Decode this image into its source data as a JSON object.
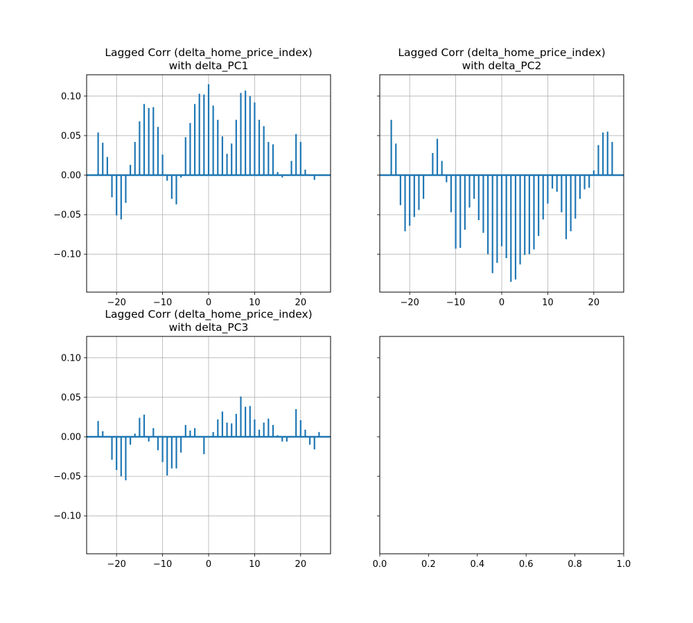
{
  "style": {
    "bar_color": "#1f77b4",
    "grid_color": "#b0b0b0",
    "background": "#ffffff"
  },
  "chart_data": [
    {
      "id": "pc1",
      "type": "bar",
      "title_line1": "Lagged Corr (delta_home_price_index)",
      "title_line2": "with delta_PC1",
      "xlabel": "",
      "ylabel": "",
      "xlim": [
        -26.5,
        26.5
      ],
      "ylim": [
        -0.148,
        0.127
      ],
      "xticks": [
        -20,
        -10,
        0,
        10,
        20
      ],
      "yticks": [
        -0.1,
        -0.05,
        0.0,
        0.05,
        0.1
      ],
      "xtick_labels": [
        "−20",
        "−10",
        "0",
        "10",
        "20"
      ],
      "ytick_labels": [
        "−0.10",
        "−0.05",
        "0.00",
        "0.05",
        "0.10"
      ],
      "show_xtick_labels": true,
      "show_ytick_labels": true,
      "grid": true,
      "baseline": 0,
      "x": [
        -24,
        -23,
        -22,
        -21,
        -20,
        -19,
        -18,
        -17,
        -16,
        -15,
        -14,
        -13,
        -12,
        -11,
        -10,
        -9,
        -8,
        -7,
        -6,
        -5,
        -4,
        -3,
        -2,
        -1,
        0,
        1,
        2,
        3,
        4,
        5,
        6,
        7,
        8,
        9,
        10,
        11,
        12,
        13,
        14,
        15,
        16,
        17,
        18,
        19,
        20,
        21,
        22,
        23,
        24
      ],
      "values": [
        0.054,
        0.041,
        0.023,
        -0.028,
        -0.051,
        -0.056,
        -0.035,
        0.013,
        0.042,
        0.068,
        0.09,
        0.085,
        0.086,
        0.061,
        0.026,
        -0.007,
        -0.03,
        -0.037,
        -0.003,
        0.048,
        0.066,
        0.09,
        0.103,
        0.102,
        0.115,
        0.088,
        0.07,
        0.049,
        0.027,
        0.04,
        0.07,
        0.104,
        0.107,
        0.1,
        0.092,
        0.07,
        0.062,
        0.042,
        0.039,
        0.004,
        -0.003,
        0.001,
        0.018,
        0.052,
        0.042,
        0.007,
        0.001,
        -0.006,
        0.001
      ]
    },
    {
      "id": "pc2",
      "type": "bar",
      "title_line1": "Lagged Corr (delta_home_price_index)",
      "title_line2": "with delta_PC2",
      "xlabel": "",
      "ylabel": "",
      "xlim": [
        -26.5,
        26.5
      ],
      "ylim": [
        -0.148,
        0.127
      ],
      "xticks": [
        -20,
        -10,
        0,
        10,
        20
      ],
      "yticks": [
        -0.1,
        -0.05,
        0.0,
        0.05,
        0.1
      ],
      "xtick_labels": [
        "−20",
        "−10",
        "0",
        "10",
        "20"
      ],
      "ytick_labels": [
        "−0.10",
        "−0.05",
        "0.00",
        "0.05",
        "0.10"
      ],
      "show_xtick_labels": true,
      "show_ytick_labels": false,
      "grid": true,
      "baseline": 0,
      "x": [
        -24,
        -23,
        -22,
        -21,
        -20,
        -19,
        -18,
        -17,
        -16,
        -15,
        -14,
        -13,
        -12,
        -11,
        -10,
        -9,
        -8,
        -7,
        -6,
        -5,
        -4,
        -3,
        -2,
        -1,
        0,
        1,
        2,
        3,
        4,
        5,
        6,
        7,
        8,
        9,
        10,
        11,
        12,
        13,
        14,
        15,
        16,
        17,
        18,
        19,
        20,
        21,
        22,
        23,
        24
      ],
      "values": [
        0.07,
        0.04,
        -0.038,
        -0.071,
        -0.064,
        -0.053,
        -0.044,
        -0.03,
        0.0,
        0.028,
        0.046,
        0.018,
        -0.009,
        -0.047,
        -0.093,
        -0.092,
        -0.069,
        -0.041,
        -0.03,
        -0.057,
        -0.073,
        -0.1,
        -0.124,
        -0.111,
        -0.09,
        -0.105,
        -0.135,
        -0.132,
        -0.113,
        -0.101,
        -0.1,
        -0.094,
        -0.077,
        -0.056,
        -0.036,
        -0.017,
        -0.021,
        -0.047,
        -0.081,
        -0.071,
        -0.055,
        -0.03,
        -0.018,
        -0.016,
        0.006,
        0.038,
        0.054,
        0.055,
        0.042
      ]
    },
    {
      "id": "pc3",
      "type": "bar",
      "title_line1": "Lagged Corr (delta_home_price_index)",
      "title_line2": "with delta_PC3",
      "xlabel": "",
      "ylabel": "",
      "xlim": [
        -26.5,
        26.5
      ],
      "ylim": [
        -0.148,
        0.127
      ],
      "xticks": [
        -20,
        -10,
        0,
        10,
        20
      ],
      "yticks": [
        -0.1,
        -0.05,
        0.0,
        0.05,
        0.1
      ],
      "xtick_labels": [
        "−20",
        "−10",
        "0",
        "10",
        "20"
      ],
      "ytick_labels": [
        "−0.10",
        "−0.05",
        "0.00",
        "0.05",
        "0.10"
      ],
      "show_xtick_labels": true,
      "show_ytick_labels": true,
      "grid": true,
      "baseline": 0,
      "x": [
        -24,
        -23,
        -22,
        -21,
        -20,
        -19,
        -18,
        -17,
        -16,
        -15,
        -14,
        -13,
        -12,
        -11,
        -10,
        -9,
        -8,
        -7,
        -6,
        -5,
        -4,
        -3,
        -2,
        -1,
        0,
        1,
        2,
        3,
        4,
        5,
        6,
        7,
        8,
        9,
        10,
        11,
        12,
        13,
        14,
        15,
        16,
        17,
        18,
        19,
        20,
        21,
        22,
        23,
        24
      ],
      "values": [
        0.02,
        0.007,
        0.001,
        -0.029,
        -0.042,
        -0.05,
        -0.055,
        -0.01,
        0.004,
        0.024,
        0.028,
        -0.006,
        0.011,
        -0.017,
        -0.032,
        -0.049,
        -0.04,
        -0.04,
        -0.02,
        0.015,
        0.008,
        0.011,
        0.001,
        -0.022,
        0.001,
        0.006,
        0.022,
        0.032,
        0.018,
        0.017,
        0.029,
        0.051,
        0.038,
        0.039,
        0.022,
        0.009,
        0.018,
        0.023,
        0.015,
        0.002,
        -0.006,
        -0.006,
        0.001,
        0.035,
        0.021,
        0.009,
        -0.01,
        -0.016,
        0.006
      ]
    },
    {
      "id": "empty",
      "type": "line",
      "title_line1": "",
      "title_line2": "",
      "xlabel": "",
      "ylabel": "",
      "xlim": [
        0,
        1
      ],
      "ylim": [
        -0.148,
        0.127
      ],
      "xticks": [
        0.0,
        0.2,
        0.4,
        0.6,
        0.8,
        1.0
      ],
      "yticks": [
        -0.1,
        -0.05,
        0.0,
        0.05,
        0.1
      ],
      "xtick_labels": [
        "0.0",
        "0.2",
        "0.4",
        "0.6",
        "0.8",
        "1.0"
      ],
      "ytick_labels": [
        "−0.10",
        "−0.05",
        "0.00",
        "0.05",
        "0.10"
      ],
      "show_xtick_labels": true,
      "show_ytick_labels": false,
      "grid": false,
      "baseline": null,
      "x": [],
      "values": []
    }
  ]
}
